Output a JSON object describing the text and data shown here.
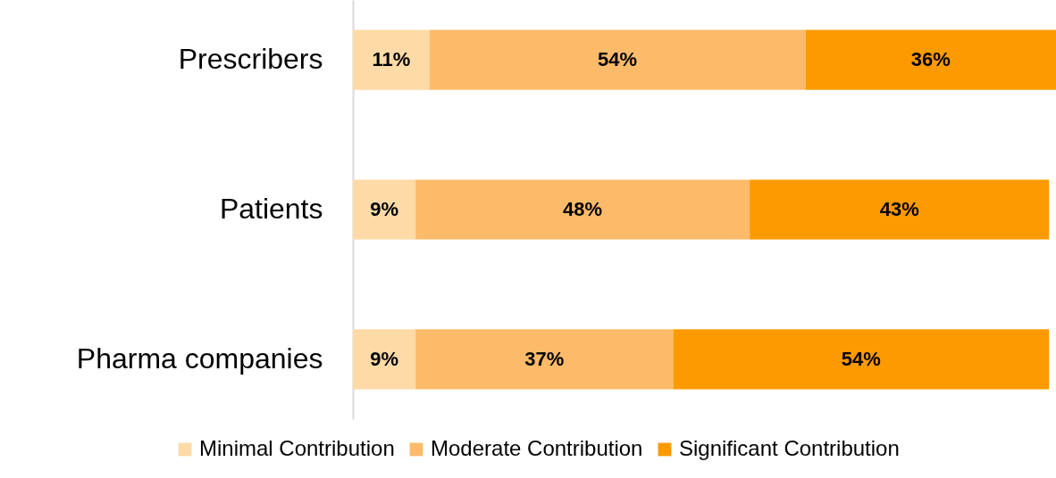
{
  "chart_data": {
    "type": "bar",
    "orientation": "horizontal",
    "stacked": true,
    "categories": [
      "Prescribers",
      "Patients",
      "Pharma companies"
    ],
    "series": [
      {
        "name": "Minimal Contribution",
        "color": "#fddaa6",
        "values": [
          11,
          9,
          9
        ],
        "value_labels": [
          "11%",
          "9%",
          "9%"
        ]
      },
      {
        "name": "Moderate Contribution",
        "color": "#fdbb6a",
        "values": [
          54,
          48,
          37
        ],
        "value_labels": [
          "54%",
          "48%",
          "37%"
        ]
      },
      {
        "name": "Significant Contribution",
        "color": "#fd9a00",
        "values": [
          36,
          43,
          54
        ],
        "value_labels": [
          "36%",
          "43%",
          "54%"
        ]
      }
    ],
    "legend": "bottom",
    "tick_labels": "y"
  }
}
